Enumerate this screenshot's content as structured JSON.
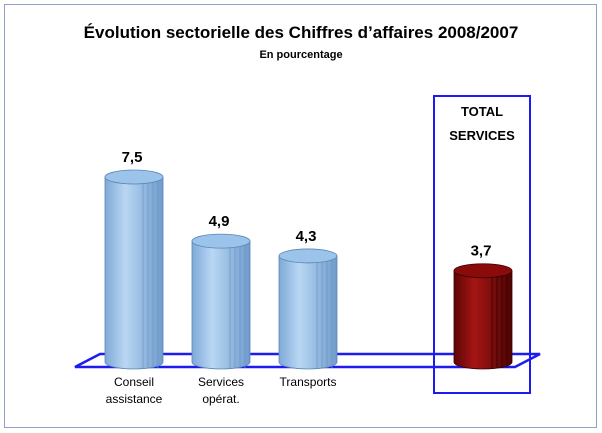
{
  "chart_data": {
    "type": "bar",
    "title": "Évolution sectorielle des Chiffres d’affaires 2008/2007",
    "subtitle": "En pourcentage",
    "categories": [
      "Conseil assistance",
      "Services opérat.",
      "Transports",
      "TOTAL SERVICES"
    ],
    "values": [
      7.5,
      4.9,
      4.3,
      3.7
    ],
    "value_labels": [
      "7,5",
      "4,9",
      "4,3",
      "3,7"
    ],
    "colors": [
      "#9cc3ea",
      "#9cc3ea",
      "#9cc3ea",
      "#8b0a0a"
    ]
  }
}
